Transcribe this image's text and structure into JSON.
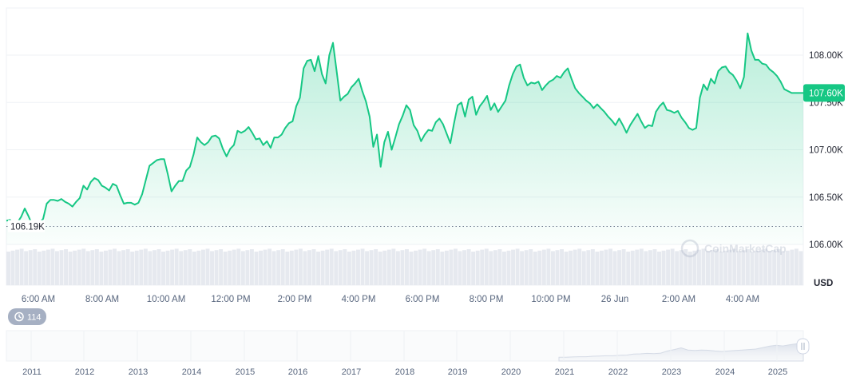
{
  "chart_data": {
    "type": "area",
    "y_axis": {
      "ticks": [
        "108.00K",
        "107.50K",
        "107.00K",
        "106.50K",
        "106.00K"
      ],
      "tick_values": [
        108000,
        107500,
        107000,
        106500,
        106000
      ],
      "currency": "USD"
    },
    "x_axis": {
      "ticks": [
        "6:00 AM",
        "8:00 AM",
        "10:00 AM",
        "12:00 PM",
        "2:00 PM",
        "4:00 PM",
        "6:00 PM",
        "8:00 PM",
        "10:00 PM",
        "26 Jun",
        "2:00 AM",
        "4:00 AM"
      ]
    },
    "current_price_label": "107.60K",
    "current_price": 107600,
    "reference_price_label": "106.19K",
    "reference_price": 106190,
    "brand_watermark": "CoinMarketCap",
    "history_badge": "114",
    "range_selector_years": [
      "2011",
      "2012",
      "2013",
      "2014",
      "2015",
      "2016",
      "2017",
      "2018",
      "2019",
      "2020",
      "2021",
      "2022",
      "2023",
      "2024",
      "2025"
    ],
    "series": [
      {
        "values": [
          106250,
          106260,
          106200,
          106230,
          106290,
          106380,
          106300,
          106210,
          106180,
          106230,
          106270,
          106430,
          106470,
          106470,
          106460,
          106480,
          106450,
          106430,
          106400,
          106450,
          106490,
          106620,
          106580,
          106660,
          106700,
          106680,
          106620,
          106600,
          106570,
          106640,
          106620,
          106520,
          106430,
          106440,
          106440,
          106420,
          106440,
          106530,
          106680,
          106830,
          106860,
          106890,
          106900,
          106900,
          106740,
          106560,
          106620,
          106670,
          106670,
          106780,
          106820,
          106950,
          107130,
          107080,
          107050,
          107080,
          107140,
          107150,
          107120,
          107010,
          106930,
          107010,
          107050,
          107200,
          107180,
          107200,
          107240,
          107180,
          107110,
          107120,
          107050,
          107090,
          107020,
          107130,
          107130,
          107160,
          107230,
          107280,
          107300,
          107460,
          107550,
          107860,
          107940,
          107950,
          107830,
          107990,
          107800,
          107700,
          108000,
          108130,
          107830,
          107520,
          107560,
          107590,
          107660,
          107700,
          107750,
          107620,
          107510,
          107350,
          107030,
          107160,
          106820,
          107080,
          107190,
          107000,
          107130,
          107270,
          107360,
          107470,
          107420,
          107260,
          107200,
          107090,
          107160,
          107210,
          107200,
          107290,
          107330,
          107270,
          107170,
          107070,
          107280,
          107470,
          107500,
          107350,
          107530,
          107560,
          107370,
          107460,
          107510,
          107570,
          107420,
          107490,
          107400,
          107460,
          107520,
          107680,
          107800,
          107880,
          107900,
          107760,
          107680,
          107710,
          107700,
          107720,
          107630,
          107680,
          107720,
          107740,
          107780,
          107760,
          107820,
          107860,
          107750,
          107650,
          107600,
          107560,
          107520,
          107490,
          107440,
          107480,
          107440,
          107400,
          107350,
          107310,
          107260,
          107330,
          107260,
          107180,
          107260,
          107320,
          107380,
          107300,
          107230,
          107260,
          107250,
          107400,
          107460,
          107500,
          107420,
          107410,
          107390,
          107410,
          107340,
          107290,
          107230,
          107210,
          107230,
          107550,
          107690,
          107630,
          107750,
          107700,
          107830,
          107870,
          107880,
          107820,
          107790,
          107730,
          107650,
          107770,
          108230,
          108050,
          107950,
          107950,
          107910,
          107900,
          107850,
          107820,
          107780,
          107720,
          107640,
          107620,
          107600,
          107600
        ]
      }
    ],
    "volume_bars": 180,
    "navigator_series": [
      0.16,
      0.16,
      0.17,
      0.18,
      0.18,
      0.2,
      0.21,
      0.22,
      0.22,
      0.24,
      0.25,
      0.29,
      0.3,
      0.32,
      0.31,
      0.33,
      0.42,
      0.48,
      0.55,
      0.46,
      0.44,
      0.46,
      0.45,
      0.42,
      0.4,
      0.42,
      0.44,
      0.46,
      0.48,
      0.5,
      0.56,
      0.62,
      0.66,
      0.63,
      0.68,
      0.72,
      0.9
    ]
  }
}
